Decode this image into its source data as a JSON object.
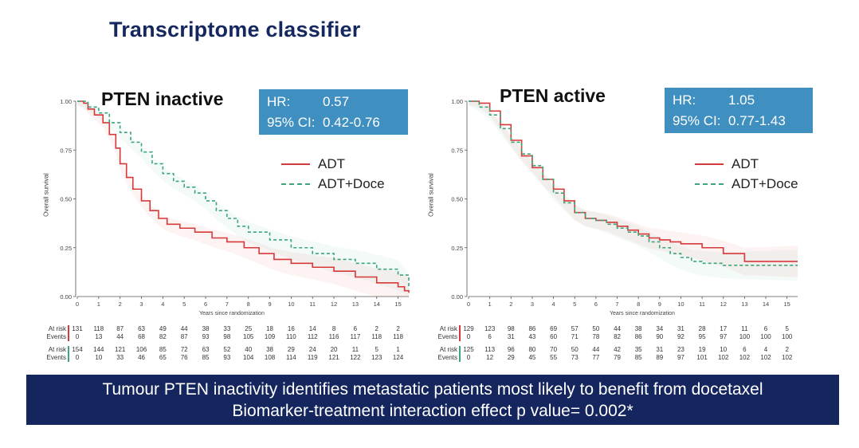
{
  "slide": {
    "title": "Transcriptome classifier",
    "footer_line1": "Tumour PTEN inactivity identifies metastatic patients most likely to benefit from docetaxel",
    "footer_line2": "Biomarker-treatment interaction effect p value= 0.002*"
  },
  "colors": {
    "adt": "#d6393a",
    "adt_doce": "#3aa67a",
    "hr_box": "#3f8fc0",
    "banner": "#15265e",
    "title": "#14285f"
  },
  "risk_labels": {
    "at_risk": "At risk",
    "events": "Events"
  },
  "chart_data": [
    {
      "type": "line",
      "title": "PTEN inactive",
      "xlabel": "Years since randomization",
      "ylabel": "Overall survival",
      "xlim": [
        0,
        15.5
      ],
      "ylim": [
        0,
        1.0
      ],
      "x_ticks": [
        "0",
        "1",
        "2",
        "3",
        "4",
        "5",
        "6",
        "7",
        "8",
        "9",
        "10",
        "11",
        "12",
        "13",
        "14",
        "15"
      ],
      "y_ticks": [
        "0.00",
        "0.25",
        "0.50",
        "0.75",
        "1.00"
      ],
      "hr": {
        "hr_label": "HR:",
        "hr_value": "0.57",
        "ci_label": "95% CI:",
        "ci_value": "0.42-0.76"
      },
      "series": [
        {
          "name": "ADT",
          "style": "solid",
          "points": [
            [
              0,
              1.0
            ],
            [
              0.3,
              0.99
            ],
            [
              0.5,
              0.96
            ],
            [
              0.8,
              0.93
            ],
            [
              1.2,
              0.89
            ],
            [
              1.5,
              0.83
            ],
            [
              1.8,
              0.76
            ],
            [
              2.0,
              0.68
            ],
            [
              2.3,
              0.61
            ],
            [
              2.6,
              0.55
            ],
            [
              3.0,
              0.49
            ],
            [
              3.4,
              0.44
            ],
            [
              3.8,
              0.4
            ],
            [
              4.2,
              0.37
            ],
            [
              4.8,
              0.35
            ],
            [
              5.5,
              0.33
            ],
            [
              6.3,
              0.3
            ],
            [
              7.0,
              0.28
            ],
            [
              7.8,
              0.25
            ],
            [
              8.5,
              0.22
            ],
            [
              9.2,
              0.19
            ],
            [
              10.0,
              0.17
            ],
            [
              11.0,
              0.15
            ],
            [
              12.0,
              0.13
            ],
            [
              13.0,
              0.1
            ],
            [
              14.0,
              0.07
            ],
            [
              15.0,
              0.05
            ],
            [
              15.3,
              0.03
            ],
            [
              15.5,
              0.02
            ]
          ]
        },
        {
          "name": "ADT+Doce",
          "style": "dashed",
          "points": [
            [
              0,
              1.0
            ],
            [
              0.5,
              0.97
            ],
            [
              1.0,
              0.94
            ],
            [
              1.5,
              0.89
            ],
            [
              2.0,
              0.84
            ],
            [
              2.5,
              0.79
            ],
            [
              3.0,
              0.74
            ],
            [
              3.5,
              0.68
            ],
            [
              4.0,
              0.63
            ],
            [
              4.5,
              0.59
            ],
            [
              5.0,
              0.56
            ],
            [
              5.5,
              0.53
            ],
            [
              6.0,
              0.49
            ],
            [
              6.5,
              0.44
            ],
            [
              7.0,
              0.4
            ],
            [
              7.5,
              0.36
            ],
            [
              8.0,
              0.33
            ],
            [
              9.0,
              0.29
            ],
            [
              10.0,
              0.25
            ],
            [
              11.0,
              0.22
            ],
            [
              12.0,
              0.19
            ],
            [
              13.0,
              0.17
            ],
            [
              14.0,
              0.14
            ],
            [
              15.0,
              0.11
            ],
            [
              15.5,
              0.04
            ]
          ]
        }
      ],
      "risk_table": {
        "adt_at_risk": [
          "131",
          "118",
          "87",
          "63",
          "49",
          "44",
          "38",
          "33",
          "25",
          "18",
          "16",
          "14",
          "8",
          "6",
          "2",
          "2"
        ],
        "adt_events": [
          "0",
          "13",
          "44",
          "68",
          "82",
          "87",
          "93",
          "98",
          "105",
          "109",
          "110",
          "112",
          "116",
          "117",
          "118",
          "118"
        ],
        "doce_at_risk": [
          "154",
          "144",
          "121",
          "106",
          "85",
          "72",
          "63",
          "52",
          "40",
          "38",
          "29",
          "24",
          "20",
          "11",
          "5",
          "1"
        ],
        "doce_events": [
          "0",
          "10",
          "33",
          "46",
          "65",
          "76",
          "85",
          "93",
          "104",
          "108",
          "114",
          "119",
          "121",
          "122",
          "123",
          "124"
        ]
      }
    },
    {
      "type": "line",
      "title": "PTEN active",
      "xlabel": "Years since randomization",
      "ylabel": "Overall survival",
      "xlim": [
        0,
        15.5
      ],
      "ylim": [
        0,
        1.0
      ],
      "x_ticks": [
        "0",
        "1",
        "2",
        "3",
        "4",
        "5",
        "6",
        "7",
        "8",
        "9",
        "10",
        "11",
        "12",
        "13",
        "14",
        "15"
      ],
      "y_ticks": [
        "0.00",
        "0.25",
        "0.50",
        "0.75",
        "1.00"
      ],
      "hr": {
        "hr_label": "HR:",
        "hr_value": "1.05",
        "ci_label": "95% CI:",
        "ci_value": "0.77-1.43"
      },
      "series": [
        {
          "name": "ADT",
          "style": "solid",
          "points": [
            [
              0,
              1.0
            ],
            [
              0.5,
              0.99
            ],
            [
              1.0,
              0.95
            ],
            [
              1.5,
              0.88
            ],
            [
              2.0,
              0.8
            ],
            [
              2.5,
              0.72
            ],
            [
              3.0,
              0.66
            ],
            [
              3.5,
              0.6
            ],
            [
              4.0,
              0.55
            ],
            [
              4.5,
              0.49
            ],
            [
              5.0,
              0.43
            ],
            [
              5.5,
              0.4
            ],
            [
              6.0,
              0.39
            ],
            [
              6.5,
              0.38
            ],
            [
              7.0,
              0.36
            ],
            [
              7.5,
              0.34
            ],
            [
              8.0,
              0.32
            ],
            [
              8.5,
              0.3
            ],
            [
              9.0,
              0.29
            ],
            [
              9.5,
              0.28
            ],
            [
              10.0,
              0.27
            ],
            [
              11.0,
              0.25
            ],
            [
              12.0,
              0.22
            ],
            [
              13.0,
              0.18
            ],
            [
              14.0,
              0.18
            ],
            [
              15.5,
              0.18
            ]
          ]
        },
        {
          "name": "ADT+Doce",
          "style": "dashed",
          "points": [
            [
              0,
              1.0
            ],
            [
              0.5,
              0.97
            ],
            [
              1.0,
              0.93
            ],
            [
              1.5,
              0.86
            ],
            [
              2.0,
              0.79
            ],
            [
              2.5,
              0.73
            ],
            [
              3.0,
              0.67
            ],
            [
              3.5,
              0.6
            ],
            [
              4.0,
              0.53
            ],
            [
              4.5,
              0.48
            ],
            [
              5.0,
              0.43
            ],
            [
              5.5,
              0.4
            ],
            [
              6.0,
              0.39
            ],
            [
              6.5,
              0.37
            ],
            [
              7.0,
              0.35
            ],
            [
              7.5,
              0.33
            ],
            [
              8.0,
              0.31
            ],
            [
              8.5,
              0.28
            ],
            [
              9.0,
              0.25
            ],
            [
              9.5,
              0.22
            ],
            [
              10.0,
              0.2
            ],
            [
              10.5,
              0.18
            ],
            [
              11.0,
              0.17
            ],
            [
              12.0,
              0.16
            ],
            [
              15.5,
              0.16
            ]
          ]
        }
      ],
      "risk_table": {
        "adt_at_risk": [
          "129",
          "123",
          "98",
          "86",
          "69",
          "57",
          "50",
          "44",
          "38",
          "34",
          "31",
          "28",
          "17",
          "11",
          "6",
          "5"
        ],
        "adt_events": [
          "0",
          "6",
          "31",
          "43",
          "60",
          "71",
          "78",
          "82",
          "86",
          "90",
          "92",
          "95",
          "97",
          "100",
          "100",
          "100"
        ],
        "doce_at_risk": [
          "125",
          "113",
          "96",
          "80",
          "70",
          "50",
          "44",
          "42",
          "35",
          "31",
          "23",
          "19",
          "10",
          "6",
          "4",
          "2"
        ],
        "doce_events": [
          "0",
          "12",
          "29",
          "45",
          "55",
          "73",
          "77",
          "79",
          "85",
          "89",
          "97",
          "101",
          "102",
          "102",
          "102",
          "102"
        ]
      }
    }
  ]
}
